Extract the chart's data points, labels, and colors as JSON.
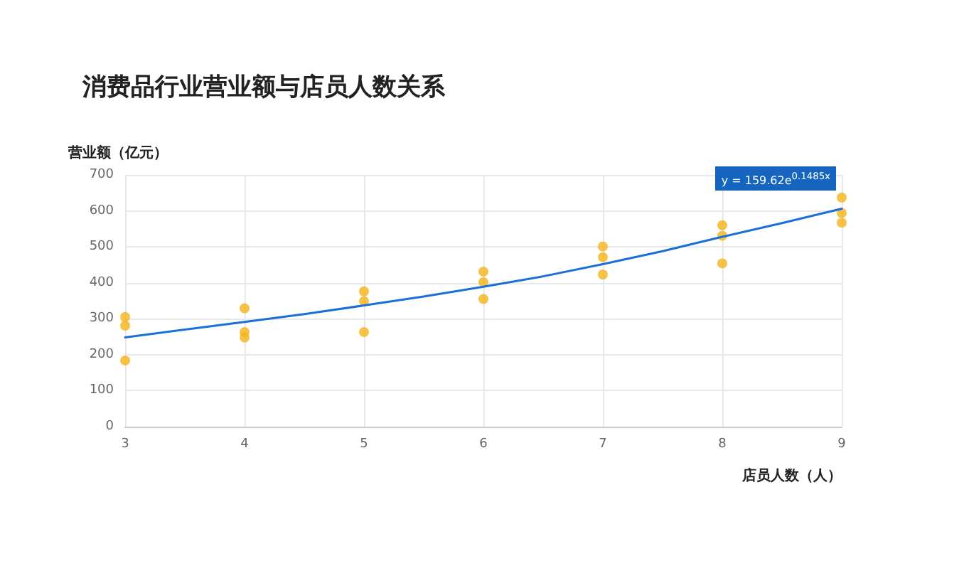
{
  "chart_data": {
    "type": "scatter",
    "title": "消费品行业营业额与店员人数关系",
    "xlabel": "店员人数（人）",
    "ylabel": "营业额（亿元）",
    "series": [
      {
        "color": "#f4b41a",
        "marker": "circle",
        "x": [
          3,
          3,
          3,
          4,
          4,
          4,
          5,
          5,
          5,
          6,
          6,
          6,
          7,
          7,
          7,
          8,
          8,
          8,
          9,
          9,
          9
        ],
        "values": [
          305,
          281,
          184,
          329,
          263,
          248,
          376,
          349,
          263,
          431,
          402,
          355,
          501,
          471,
          423,
          560,
          531,
          454,
          637,
          594,
          567
        ]
      },
      {
        "type": "line",
        "color": "#1a6fd8",
        "marker": "none",
        "line_style": "solid",
        "x": [
          3,
          3.5,
          4,
          4.5,
          5,
          5.5,
          6,
          6.5,
          7,
          7.5,
          8,
          8.5,
          9
        ],
        "values": [
          248,
          270,
          291,
          313,
          337,
          362,
          389,
          418,
          452,
          488,
          528,
          566,
          606
        ]
      }
    ],
    "annotations": [
      {
        "text": "y = 159.62e$^{0.1485x}$",
        "x": 9,
        "y": 606
      }
    ],
    "xlim": [
      3,
      9
    ],
    "xticks": [
      3,
      4,
      5,
      6,
      7,
      8,
      9
    ],
    "ylim": [
      0,
      700
    ],
    "yticks": [
      0,
      100,
      200,
      300,
      400,
      500,
      600,
      700
    ],
    "grid": true
  }
}
